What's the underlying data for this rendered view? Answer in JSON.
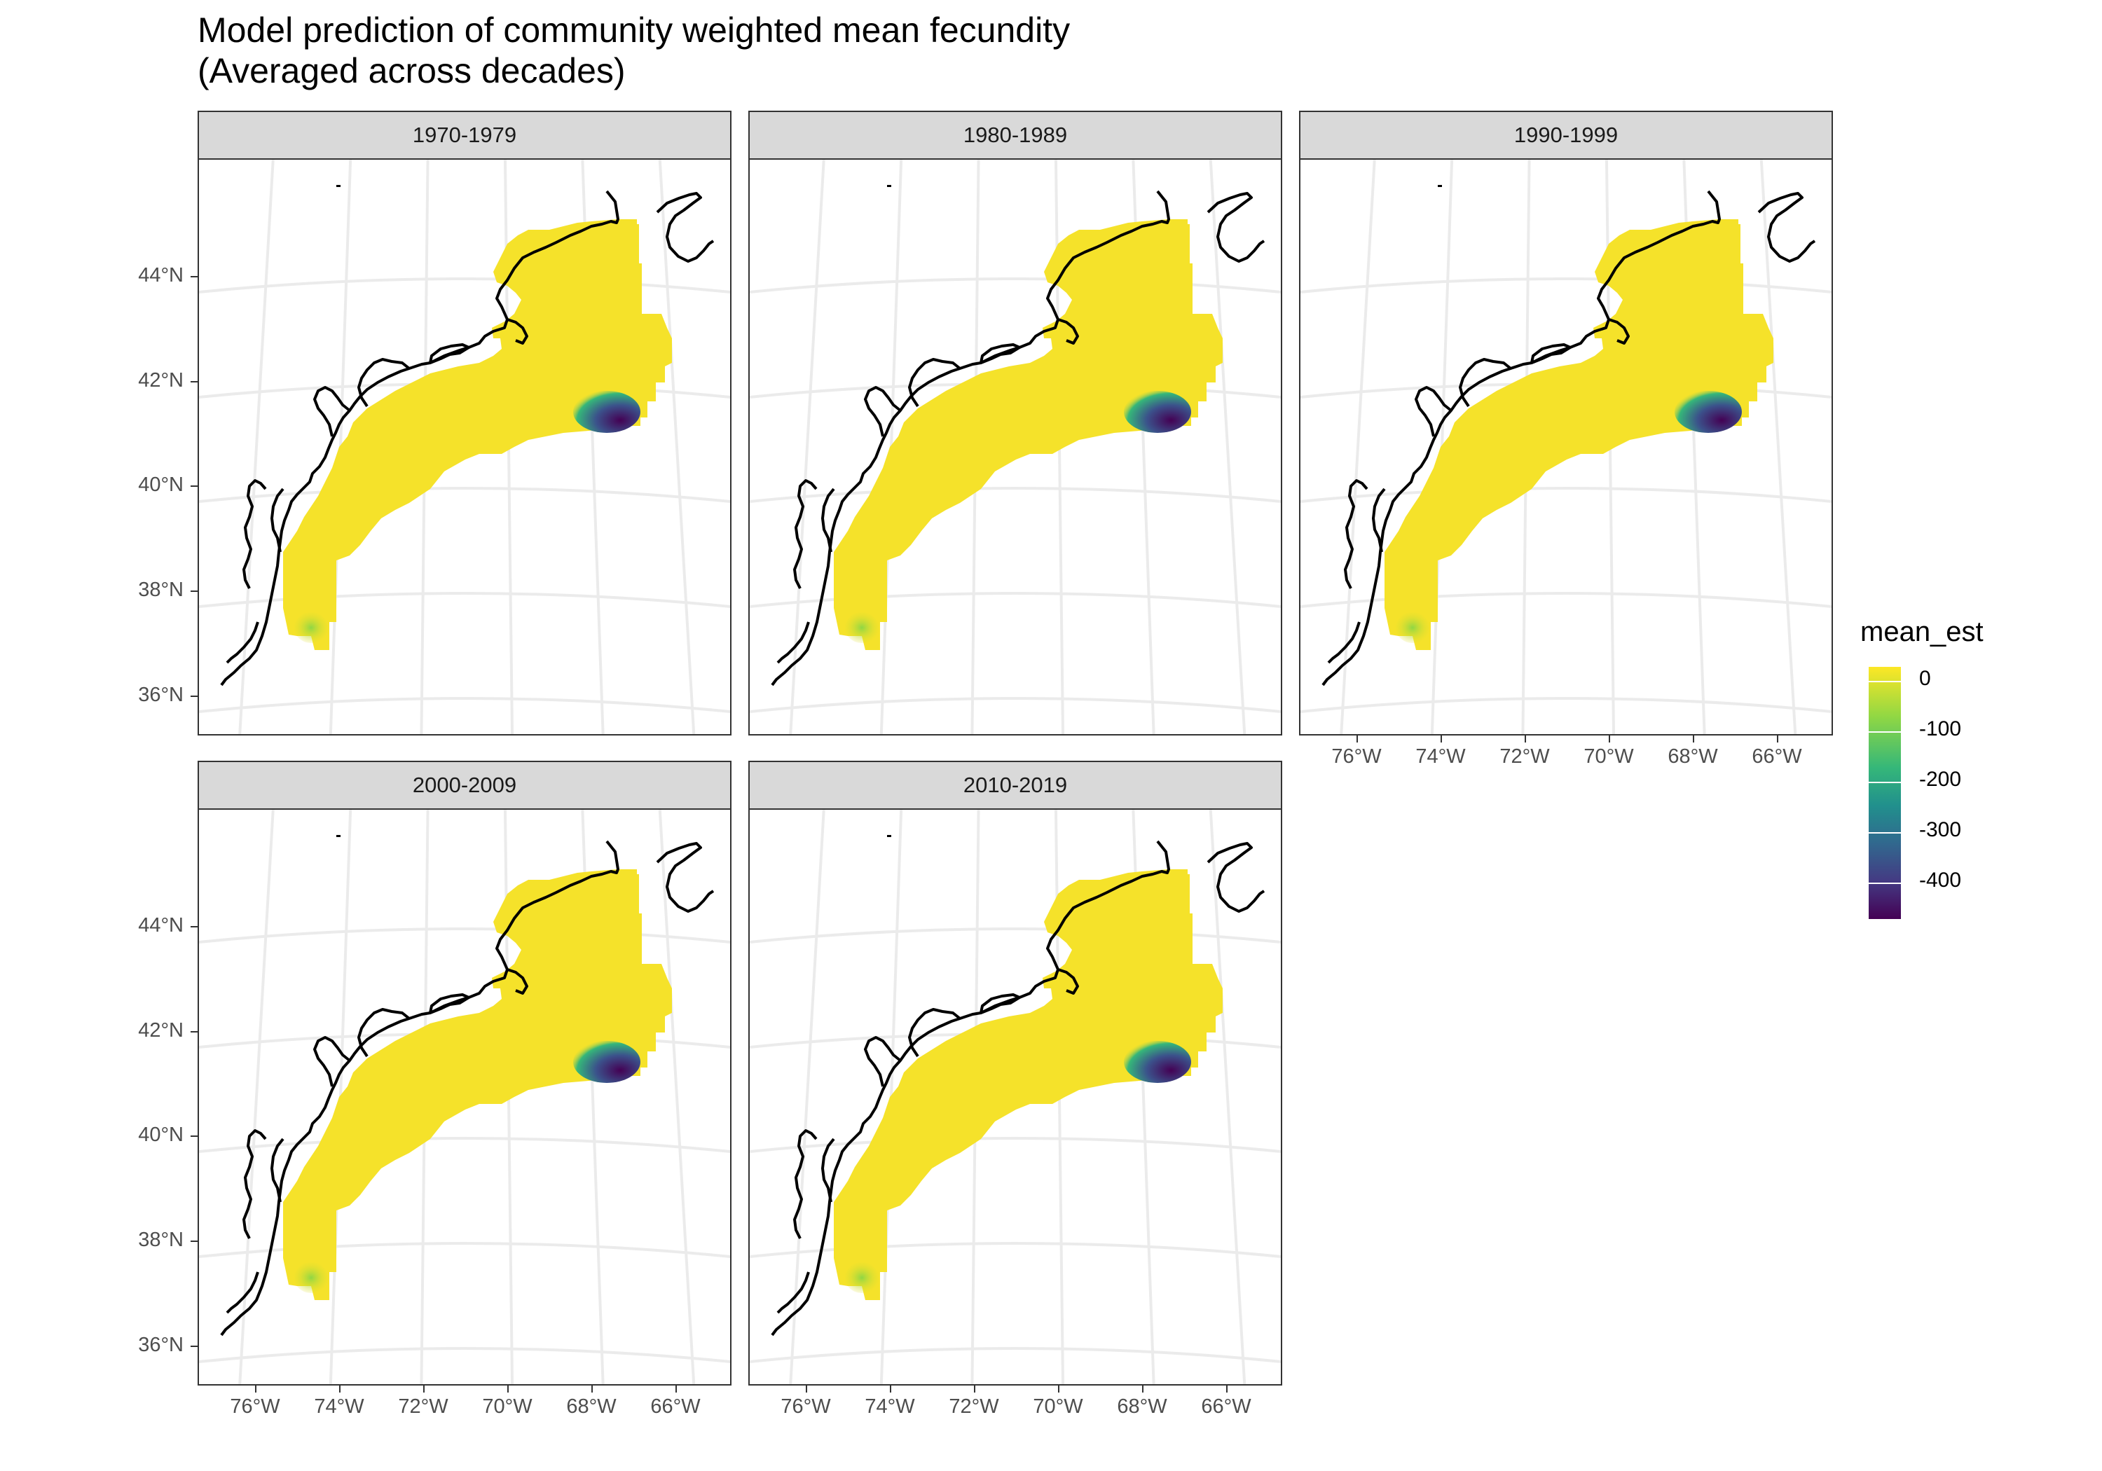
{
  "title_line1": "Model prediction of community weighted mean fecundity",
  "title_line2": "(Averaged across decades)",
  "panels": [
    "1970-1979",
    "1980-1989",
    "1990-1999",
    "2000-2009",
    "2010-2019"
  ],
  "y_ticks": [
    "44°N",
    "42°N",
    "40°N",
    "38°N",
    "36°N"
  ],
  "x_ticks": [
    "76°W",
    "74°W",
    "72°W",
    "70°W",
    "68°W",
    "66°W"
  ],
  "legend": {
    "title": "mean_est",
    "labels": [
      "0",
      "-100",
      "-200",
      "-300",
      "-400"
    ],
    "colors": [
      "#fde725",
      "#8fd744",
      "#35b779",
      "#21908d",
      "#31688e",
      "#443a83",
      "#440154"
    ]
  },
  "map_colors": {
    "field": "#f5e22a",
    "coast": "#000000",
    "graticule": "#ebebeb",
    "low_patch": "#3b528b",
    "min_patch": "#440154",
    "south_patch": "#a8db34"
  }
}
